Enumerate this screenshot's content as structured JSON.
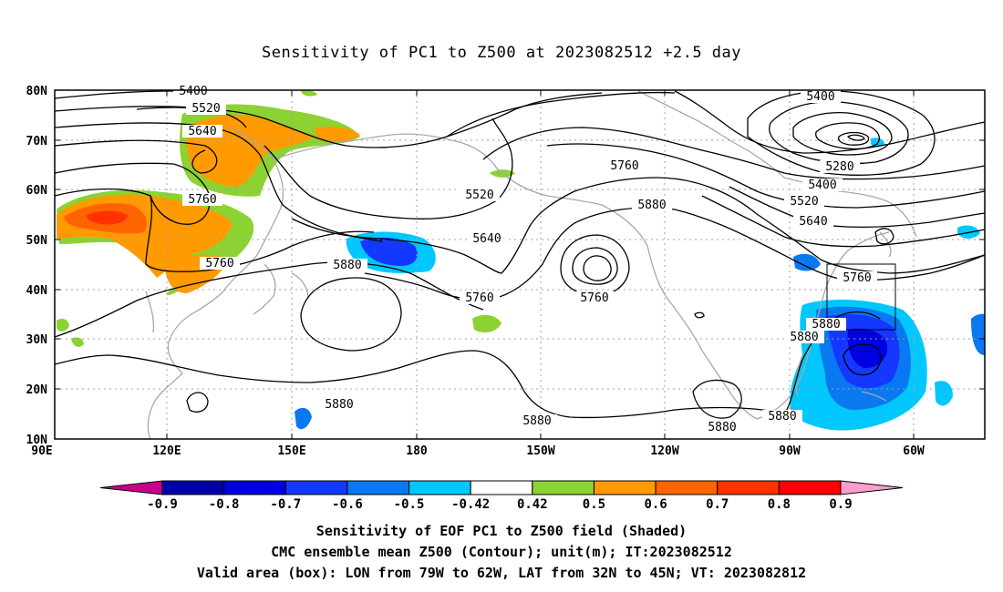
{
  "title": "Sensitivity of PC1 to Z500 at 2023082512 +2.5 day",
  "lat_labels": [
    "80N",
    "70N",
    "60N",
    "50N",
    "40N",
    "30N",
    "20N",
    "10N"
  ],
  "lon_labels": [
    "90E",
    "120E",
    "150E",
    "180",
    "150W",
    "120W",
    "90W",
    "60W"
  ],
  "colorbar": {
    "labels": [
      "-0.9",
      "-0.8",
      "-0.7",
      "-0.6",
      "-0.5",
      "-0.42",
      "0.42",
      "0.5",
      "0.6",
      "0.7",
      "0.8",
      "0.9"
    ],
    "colors": [
      "#c8008c",
      "#0000a8",
      "#0000e0",
      "#1438ff",
      "#0a78f0",
      "#00c8ff",
      "#ffffff",
      "#8cd232",
      "#ff9b00",
      "#ff6400",
      "#ff3200",
      "#ff0000",
      "#ff9ecb"
    ]
  },
  "contour_labels": {
    "a": "5400",
    "b": "5520",
    "c": "5640",
    "d": "5760",
    "e": "5760",
    "f": "5880",
    "g": "5400",
    "h": "5280",
    "i": "5400",
    "j": "5520",
    "k": "5640",
    "l": "5760",
    "m": "5760",
    "n": "5880",
    "o": "5640",
    "p": "5520",
    "q": "5760",
    "r": "5760",
    "s": "5880",
    "t": "5880",
    "u": "5880",
    "v": "5880",
    "w": "5880",
    "x": "5880"
  },
  "captions": {
    "line1": "Sensitivity of EOF PC1 to Z500 field (Shaded)",
    "line2": "CMC ensemble mean Z500 (Contour); unit(m); IT:2023082512",
    "line3": "Valid area (box): LON from 79W to 62W, LAT from 32N to 45N; VT: 2023082812"
  }
}
